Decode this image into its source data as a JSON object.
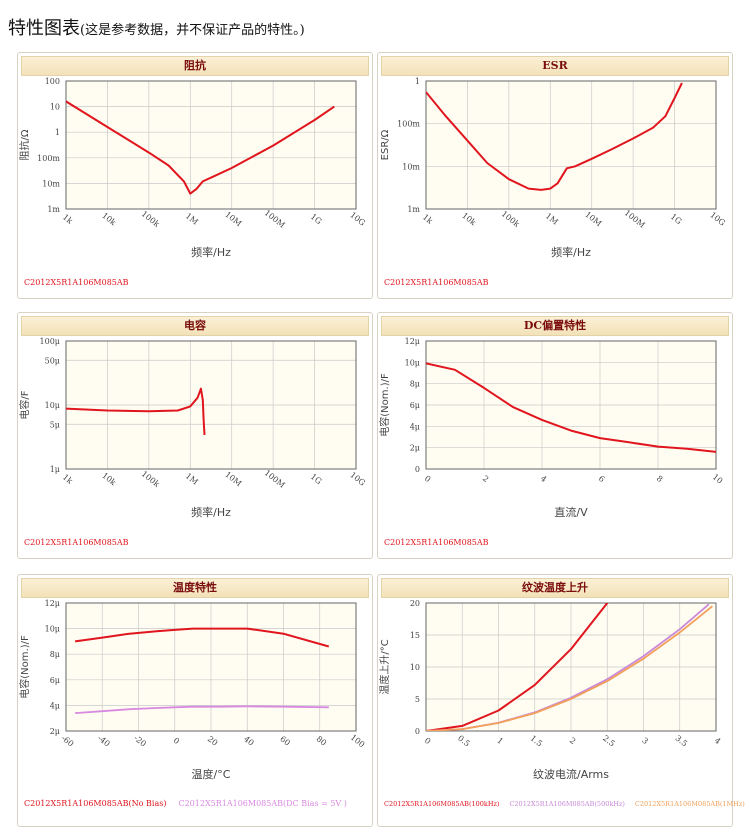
{
  "page": {
    "title": "特性图表",
    "note": "(这是参考数据，并不保证产品的特性。)"
  },
  "colors": {
    "red": "#e0151d",
    "violet": "#d88ae0",
    "violet2": "#c98ad8",
    "orange": "#f2a05a",
    "plot_bg": "#fffdf2"
  },
  "chart_data": [
    {
      "id": "impedance",
      "type": "line",
      "title": "阻抗",
      "xscale": "log",
      "yscale": "log",
      "xlabel": "频率/Hz",
      "ylabel": "阻抗/Ω",
      "xlim": [
        1000,
        10000000000
      ],
      "ylim": [
        0.001,
        100
      ],
      "xticks": [
        1000,
        10000,
        100000,
        1000000,
        10000000,
        100000000,
        1000000000,
        10000000000
      ],
      "xtick_labels": [
        "1k",
        "10k",
        "100k",
        "1M",
        "10M",
        "100M",
        "1G",
        "10G"
      ],
      "yticks": [
        0.001,
        0.01,
        0.1,
        1,
        10,
        100
      ],
      "ytick_labels": [
        "1m",
        "10m",
        "100m",
        "1",
        "10",
        "100"
      ],
      "series": [
        {
          "color": "#e0151d",
          "x": [
            1000,
            10000,
            100000,
            300000,
            700000,
            1000000,
            1400000,
            2000000,
            4000000,
            10000000,
            100000000,
            1000000000,
            3000000000
          ],
          "y": [
            16,
            1.6,
            0.16,
            0.05,
            0.012,
            0.004,
            0.006,
            0.012,
            0.02,
            0.04,
            0.3,
            3,
            10
          ]
        }
      ],
      "legend": [
        {
          "label": "C2012X5R1A106M085AB",
          "color": "#e0151d"
        }
      ]
    },
    {
      "id": "esr",
      "type": "line",
      "title": "ESR",
      "xscale": "log",
      "yscale": "log",
      "xlabel": "频率/Hz",
      "ylabel": "ESR/Ω",
      "xlim": [
        1000,
        10000000000
      ],
      "ylim": [
        0.001,
        1
      ],
      "xticks": [
        1000,
        10000,
        100000,
        1000000,
        10000000,
        100000000,
        1000000000,
        10000000000
      ],
      "xtick_labels": [
        "1k",
        "10k",
        "100k",
        "1M",
        "10M",
        "100M",
        "1G",
        "10G"
      ],
      "yticks": [
        0.001,
        0.01,
        0.1,
        1
      ],
      "ytick_labels": [
        "1m",
        "10m",
        "100m",
        "1"
      ],
      "series": [
        {
          "color": "#e0151d",
          "x": [
            1000,
            3000,
            10000,
            30000,
            100000,
            300000,
            600000,
            1000000,
            1500000,
            2500000,
            4000000,
            10000000,
            30000000,
            100000000,
            300000000,
            600000000,
            1000000000,
            1500000000
          ],
          "y": [
            0.55,
            0.15,
            0.04,
            0.012,
            0.005,
            0.003,
            0.0028,
            0.003,
            0.004,
            0.009,
            0.01,
            0.015,
            0.025,
            0.045,
            0.08,
            0.15,
            0.4,
            0.9
          ]
        }
      ],
      "legend": [
        {
          "label": "C2012X5R1A106M085AB",
          "color": "#e0151d"
        }
      ]
    },
    {
      "id": "capacitance",
      "type": "line",
      "title": "电容",
      "xscale": "log",
      "yscale": "log",
      "xlabel": "频率/Hz",
      "ylabel": "电容/F",
      "xlim": [
        1000,
        10000000000
      ],
      "ylim": [
        1e-06,
        0.0001
      ],
      "xticks": [
        1000,
        10000,
        100000,
        1000000,
        10000000,
        100000000,
        1000000000,
        10000000000
      ],
      "xtick_labels": [
        "1k",
        "10k",
        "100k",
        "1M",
        "10M",
        "100M",
        "1G",
        "10G"
      ],
      "yticks": [
        1e-06,
        5e-06,
        1e-05,
        5e-05,
        0.0001
      ],
      "ytick_labels": [
        "1μ",
        "5μ",
        "10μ",
        "50μ",
        "100μ"
      ],
      "series": [
        {
          "color": "#e0151d",
          "x": [
            1000,
            10000,
            100000,
            500000,
            1000000,
            1500000,
            1800000,
            2000000,
            2100000,
            2200000
          ],
          "y": [
            8.8e-06,
            8.2e-06,
            8e-06,
            8.2e-06,
            9.5e-06,
            1.3e-05,
            1.8e-05,
            1.2e-05,
            6e-06,
            3.4e-06
          ]
        }
      ],
      "legend": [
        {
          "label": "C2012X5R1A106M085AB",
          "color": "#e0151d"
        }
      ]
    },
    {
      "id": "dc-bias",
      "type": "line",
      "title": "DC偏置特性",
      "xlabel": "直流/V",
      "ylabel": "电容(Nom.)/F",
      "xlim": [
        0,
        10
      ],
      "ylim": [
        0,
        12
      ],
      "xticks": [
        0,
        2,
        4,
        6,
        8,
        10
      ],
      "xtick_labels": [
        "0",
        "2",
        "4",
        "6",
        "8",
        "10"
      ],
      "yticks": [
        0,
        2,
        4,
        6,
        8,
        10,
        12
      ],
      "ytick_labels": [
        "0",
        "2μ",
        "4μ",
        "6μ",
        "8μ",
        "10μ",
        "12μ"
      ],
      "series": [
        {
          "color": "#e0151d",
          "x": [
            0,
            1,
            2,
            3,
            4,
            5,
            6,
            7,
            8,
            9,
            10
          ],
          "y": [
            9.9,
            9.3,
            7.6,
            5.8,
            4.6,
            3.6,
            2.9,
            2.5,
            2.1,
            1.9,
            1.6
          ]
        }
      ],
      "legend": [
        {
          "label": "C2012X5R1A106M085AB",
          "color": "#e0151d"
        }
      ]
    },
    {
      "id": "temperature",
      "type": "line",
      "title": "温度特性",
      "xlabel": "温度/°C",
      "ylabel": "电容(Nom.)/F",
      "xlim": [
        -60,
        100
      ],
      "ylim": [
        2,
        12
      ],
      "xticks": [
        -60,
        -40,
        -20,
        0,
        20,
        40,
        60,
        80,
        100
      ],
      "xtick_labels": [
        "-60",
        "-40",
        "-20",
        "0",
        "20",
        "40",
        "60",
        "80",
        "100"
      ],
      "yticks": [
        2,
        4,
        6,
        8,
        10,
        12
      ],
      "ytick_labels": [
        "2μ",
        "4μ",
        "6μ",
        "8μ",
        "10μ",
        "12μ"
      ],
      "series": [
        {
          "color": "#e0151d",
          "x": [
            -55,
            -40,
            -25,
            -10,
            0,
            10,
            25,
            40,
            60,
            85
          ],
          "y": [
            9.0,
            9.3,
            9.6,
            9.8,
            9.9,
            10.0,
            10.0,
            10.0,
            9.6,
            8.6
          ]
        },
        {
          "color": "#d88ae0",
          "x": [
            -55,
            -40,
            -25,
            -10,
            0,
            10,
            25,
            40,
            60,
            85
          ],
          "y": [
            3.4,
            3.55,
            3.7,
            3.8,
            3.85,
            3.9,
            3.9,
            3.92,
            3.9,
            3.85
          ]
        }
      ],
      "legend": [
        {
          "label": "C2012X5R1A106M085AB(No Bias)",
          "color": "#e0151d"
        },
        {
          "label": "C2012X5R1A106M085AB(DC Bias = 5V )",
          "color": "#d88ae0"
        }
      ]
    },
    {
      "id": "ripple",
      "type": "line",
      "title": "纹波温度上升",
      "xlabel": "纹波电流/Arms",
      "ylabel": "温度上升/°C",
      "xlim": [
        0,
        4
      ],
      "ylim": [
        0,
        20
      ],
      "xticks": [
        0,
        0.5,
        1,
        1.5,
        2,
        2.5,
        3,
        3.5,
        4
      ],
      "xtick_labels": [
        "0",
        "0.5",
        "1",
        "1.5",
        "2",
        "2.5",
        "3",
        "3.5",
        "4"
      ],
      "yticks": [
        0,
        5,
        10,
        15,
        20
      ],
      "ytick_labels": [
        "0",
        "5",
        "10",
        "15",
        "20"
      ],
      "series": [
        {
          "color": "#e0151d",
          "x": [
            0,
            0.5,
            1,
            1.5,
            2,
            2.5,
            2.8
          ],
          "y": [
            0,
            0.8,
            3.2,
            7.2,
            12.8,
            20.0,
            25.0
          ]
        },
        {
          "color": "#c98ad8",
          "x": [
            0,
            0.5,
            1,
            1.5,
            2,
            2.5,
            3,
            3.5,
            3.9
          ],
          "y": [
            0,
            0.3,
            1.3,
            2.9,
            5.2,
            8.1,
            11.7,
            15.9,
            19.8
          ]
        },
        {
          "color": "#f2a05a",
          "x": [
            0,
            0.5,
            1,
            1.5,
            2,
            2.5,
            3,
            3.5,
            3.95
          ],
          "y": [
            0,
            0.3,
            1.25,
            2.8,
            5.0,
            7.8,
            11.3,
            15.4,
            19.5
          ]
        }
      ],
      "legend": [
        {
          "label": "C2012X5R1A106M085AB(100kHz)",
          "color": "#e0151d"
        },
        {
          "label": "C2012X5R1A106M085AB(500kHz)",
          "color": "#c98ad8"
        },
        {
          "label": "C2012X5R1A106M085AB(1MHz)",
          "color": "#f2a05a"
        }
      ]
    }
  ]
}
